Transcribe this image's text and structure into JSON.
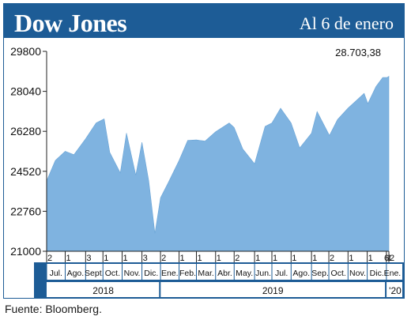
{
  "header": {
    "title": "Dow Jones",
    "date_label": "Al 6 de enero"
  },
  "source": "Fuente: Bloomberg.",
  "colors": {
    "header_bg": "#1d5c96",
    "area_fill": "#7fb3e0",
    "band_bg": "#1d5c96",
    "axis": "#222222"
  },
  "chart_data": {
    "type": "area",
    "title": "Dow Jones",
    "ylim": [
      21000,
      29800
    ],
    "yticks": [
      21000,
      22760,
      24520,
      26280,
      28040,
      29800
    ],
    "ytick_labels": [
      "21000",
      "22760",
      "24520",
      "26280",
      "28040",
      "29800"
    ],
    "last_value_label": "28.703,38",
    "grid": false,
    "day_ticks": [
      "2",
      "1",
      "3",
      "1",
      "1",
      "3",
      "2",
      "1",
      "1",
      "1",
      "2",
      "1",
      "1",
      "1",
      "1",
      "2",
      "1",
      "1",
      "1",
      "2",
      "6"
    ],
    "month_labels": [
      "Jul.",
      "Ago.",
      "Sept.",
      "Oct.",
      "Nov.",
      "Dic.",
      "Ene.",
      "Feb.",
      "Mar.",
      "Abr.",
      "May.",
      "Jun.",
      "Jul.",
      "Ago.",
      "Sep.",
      "Oct.",
      "Nov.",
      "Dic.",
      "Ene."
    ],
    "year_labels": [
      "2018",
      "2019",
      "'20"
    ],
    "series": [
      {
        "x": [
          "2018-07-02",
          "2018-07-16",
          "2018-08-01",
          "2018-08-15",
          "2018-09-03",
          "2018-09-20",
          "2018-10-03",
          "2018-10-12",
          "2018-10-29",
          "2018-11-08",
          "2018-11-23",
          "2018-12-03",
          "2018-12-14",
          "2018-12-24",
          "2019-01-02",
          "2019-01-15",
          "2019-02-01",
          "2019-02-15",
          "2019-03-01",
          "2019-03-15",
          "2019-04-01",
          "2019-04-23",
          "2019-05-01",
          "2019-05-15",
          "2019-06-03",
          "2019-06-20",
          "2019-07-01",
          "2019-07-15",
          "2019-08-01",
          "2019-08-15",
          "2019-09-03",
          "2019-09-12",
          "2019-10-02",
          "2019-10-15",
          "2019-11-01",
          "2019-11-27",
          "2019-12-03",
          "2019-12-16",
          "2019-12-27",
          "2020-01-03",
          "2020-01-06"
        ],
        "values": [
          24100,
          25000,
          25400,
          25250,
          25950,
          26650,
          26830,
          25350,
          24450,
          26200,
          24350,
          25800,
          24100,
          21790,
          23350,
          24050,
          25000,
          25880,
          25900,
          25850,
          26260,
          26650,
          26450,
          25500,
          24850,
          26500,
          26650,
          27300,
          26650,
          25550,
          26200,
          27150,
          26100,
          26800,
          27300,
          27950,
          27500,
          28250,
          28650,
          28650,
          28700
        ]
      }
    ]
  }
}
